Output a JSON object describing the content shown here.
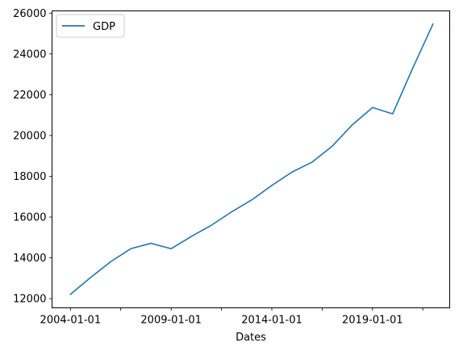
{
  "chart_data": {
    "type": "line",
    "title": "",
    "xlabel": "Dates",
    "ylabel": "",
    "x": [
      "2004-01-01",
      "2005-01-01",
      "2006-01-01",
      "2007-01-01",
      "2008-01-01",
      "2009-01-01",
      "2010-01-01",
      "2011-01-01",
      "2012-01-01",
      "2013-01-01",
      "2014-01-01",
      "2015-01-01",
      "2016-01-01",
      "2017-01-01",
      "2018-01-01",
      "2019-01-01",
      "2020-01-01",
      "2021-01-01",
      "2022-01-01"
    ],
    "series": [
      {
        "name": "GDP",
        "color": "#1f77b4",
        "values": [
          12213,
          13037,
          13815,
          14452,
          14713,
          14449,
          15049,
          15600,
          16254,
          16843,
          17551,
          18206,
          18695,
          19480,
          20527,
          21373,
          21061,
          23315,
          25464
        ]
      }
    ],
    "x_tick_labels": [
      "2004-01-01",
      "2009-01-01",
      "2014-01-01",
      "2019-01-01"
    ],
    "x_tick_values": [
      "2004-01-01",
      "2009-01-01",
      "2014-01-01",
      "2019-01-01"
    ],
    "x_minor_tick_values": [
      "2006-07-01",
      "2011-07-01",
      "2016-07-01",
      "2021-07-01"
    ],
    "y_tick_labels": [
      "12000",
      "14000",
      "16000",
      "18000",
      "20000",
      "22000",
      "24000",
      "26000"
    ],
    "y_tick_values": [
      12000,
      14000,
      16000,
      18000,
      20000,
      22000,
      24000,
      26000
    ],
    "ylim": [
      11550,
      26110
    ],
    "xlim": [
      "2003-02-01",
      "2022-11-01"
    ],
    "legend_position": "upper left",
    "grid": false
  }
}
